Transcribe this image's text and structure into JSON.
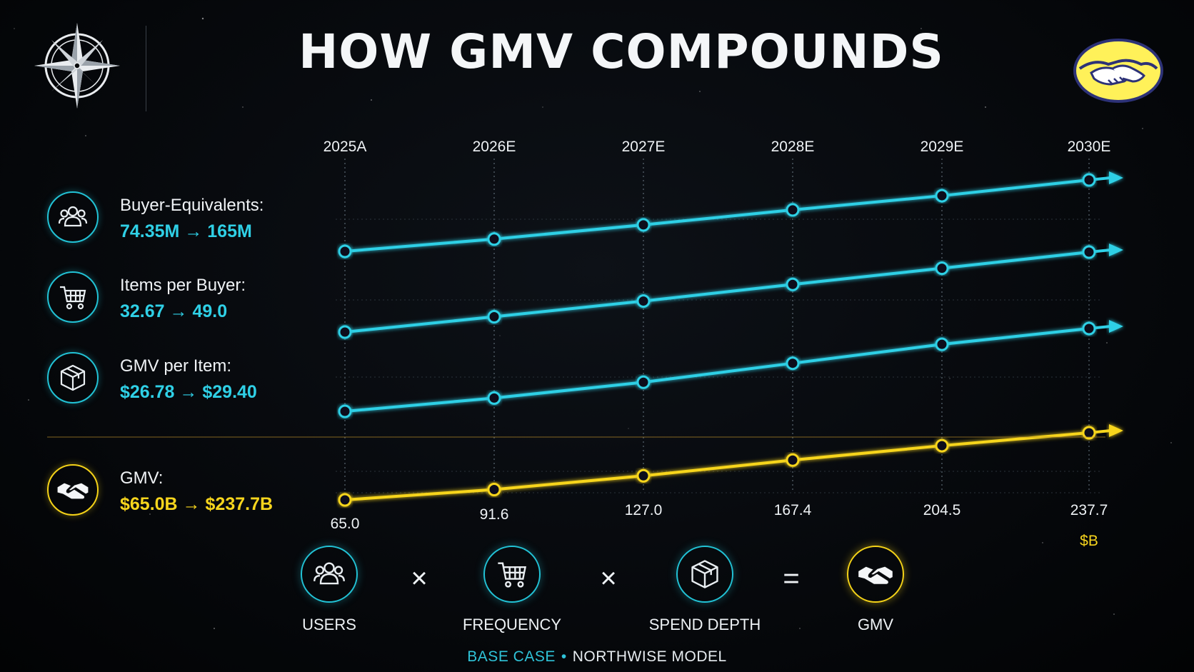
{
  "title": "HOW GMV COMPOUNDS",
  "colors": {
    "cyan": "#2fd0e6",
    "gold": "#f7d51d",
    "background": "#05070a"
  },
  "metrics": [
    {
      "icon": "users-icon",
      "label": "Buyer-Equivalents:",
      "value": "74.35M → 165M"
    },
    {
      "icon": "cart-icon",
      "label": "Items per Buyer:",
      "value": "32.67 → 49.0"
    },
    {
      "icon": "box-icon",
      "label": "GMV per Item:",
      "value": "$26.78 → $29.40"
    },
    {
      "icon": "handshake-icon",
      "label": "GMV:",
      "value": "$65.0B → $237.7B"
    }
  ],
  "chart_data": {
    "type": "line",
    "categories": [
      "2025A",
      "2026E",
      "2027E",
      "2028E",
      "2029E",
      "2030E"
    ],
    "series": [
      {
        "name": "Buyer-Equivalents",
        "unit": "M",
        "values": [
          74.35,
          90,
          108,
          127,
          145,
          165
        ]
      },
      {
        "name": "Items per Buyer",
        "values": [
          32.67,
          35.8,
          39.0,
          42.4,
          45.7,
          49.0
        ]
      },
      {
        "name": "GMV per Item",
        "unit": "$",
        "values": [
          26.78,
          27.2,
          27.7,
          28.3,
          28.9,
          29.4
        ]
      },
      {
        "name": "GMV",
        "unit": "$B",
        "values": [
          65.0,
          91.6,
          127.0,
          167.4,
          204.5,
          237.7
        ],
        "data_labels": [
          "65.0",
          "91.6",
          "127.0",
          "167.4",
          "204.5",
          "237.7"
        ]
      }
    ],
    "unit_label": "$B",
    "grid": true
  },
  "formula": {
    "items": [
      {
        "icon": "users-icon",
        "label": "USERS"
      },
      {
        "icon": "cart-icon",
        "label": "FREQUENCY"
      },
      {
        "icon": "box-icon",
        "label": "SPEND DEPTH"
      },
      {
        "icon": "handshake-icon",
        "label": "GMV"
      }
    ],
    "operators": [
      "×",
      "×",
      "="
    ]
  },
  "footer": {
    "case": "BASE CASE",
    "separator": "•",
    "model": "NORTHWISE MODEL"
  }
}
